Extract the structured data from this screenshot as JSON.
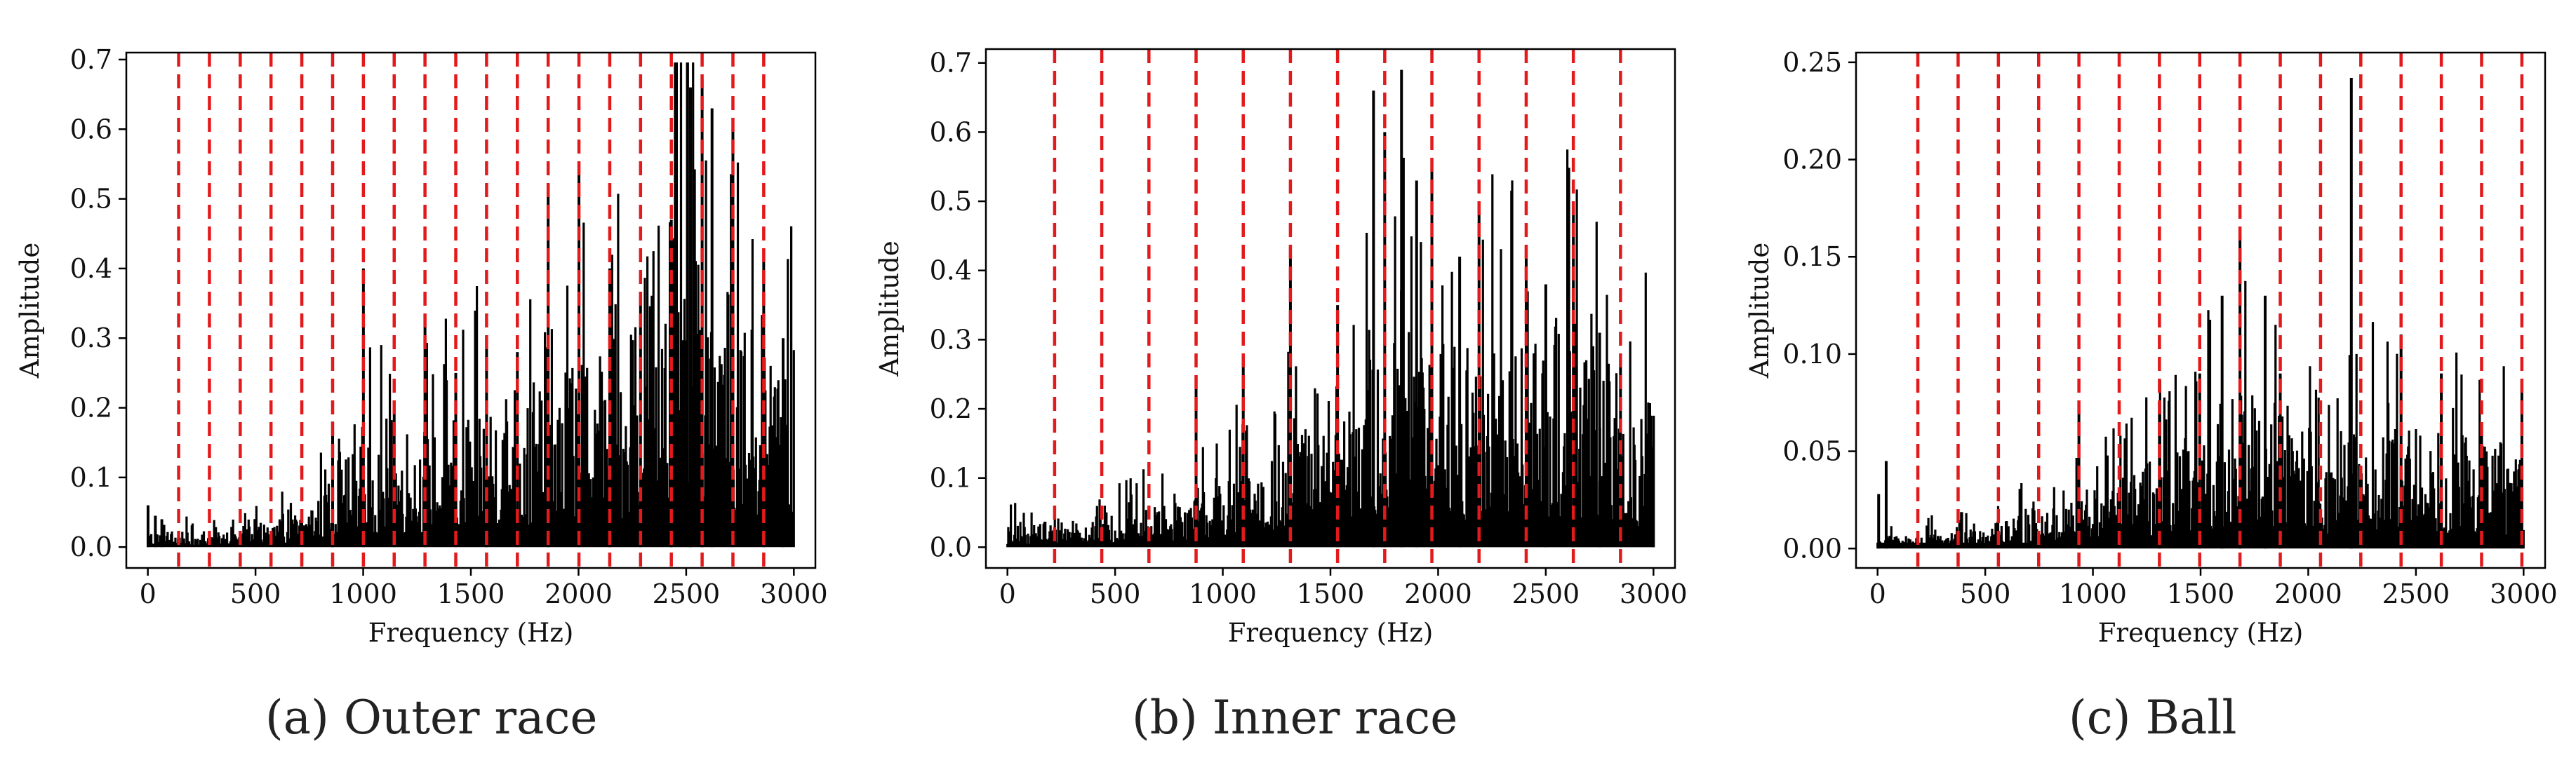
{
  "figure": {
    "captions": [
      "(a) Outer race",
      "(b) Inner race",
      "(c) Ball"
    ]
  },
  "colors": {
    "signal": "#000000",
    "harmonic_markers": "#e31a1c",
    "axes": "#000000"
  },
  "chart_data": [
    {
      "type": "line",
      "caption": "(a) Outer race",
      "xlabel": "Frequency (Hz)",
      "ylabel": "Amplitude",
      "xlim": [
        -100,
        3100
      ],
      "ylim": [
        -0.03,
        0.71
      ],
      "xticks": [
        0,
        500,
        1000,
        1500,
        2000,
        2500,
        3000
      ],
      "yticks": [
        0.0,
        0.1,
        0.2,
        0.3,
        0.4,
        0.5,
        0.6,
        0.7
      ],
      "ytick_labels": [
        "0.0",
        "0.1",
        "0.2",
        "0.3",
        "0.4",
        "0.5",
        "0.6",
        "0.7"
      ],
      "harmonic_lines": [
        143,
        286,
        429,
        572,
        715,
        858,
        1001,
        1144,
        1287,
        1430,
        1573,
        1716,
        1859,
        2002,
        2145,
        2288,
        2431,
        2574,
        2717,
        2860
      ],
      "envelope": [
        [
          0,
          0.02
        ],
        [
          300,
          0.02
        ],
        [
          700,
          0.04
        ],
        [
          900,
          0.1
        ],
        [
          1000,
          0.13
        ],
        [
          1300,
          0.14
        ],
        [
          1600,
          0.18
        ],
        [
          1900,
          0.21
        ],
        [
          2200,
          0.26
        ],
        [
          2400,
          0.42
        ],
        [
          2550,
          0.46
        ],
        [
          2700,
          0.32
        ],
        [
          2900,
          0.27
        ],
        [
          3000,
          0.25
        ]
      ],
      "peaks": [
        [
          1,
          0.06
        ],
        [
          35,
          0.045
        ],
        [
          65,
          0.04
        ],
        [
          858,
          0.18
        ],
        [
          1001,
          0.4
        ],
        [
          1144,
          0.2
        ],
        [
          1287,
          0.33
        ],
        [
          1430,
          0.25
        ],
        [
          1573,
          0.3
        ],
        [
          1716,
          0.28
        ],
        [
          1859,
          0.52
        ],
        [
          2002,
          0.55
        ],
        [
          2145,
          0.4
        ],
        [
          2288,
          0.36
        ],
        [
          2431,
          0.47
        ],
        [
          2520,
          0.66
        ],
        [
          2574,
          0.67
        ],
        [
          2620,
          0.63
        ],
        [
          2717,
          0.6
        ],
        [
          2860,
          0.41
        ],
        [
          2950,
          0.3
        ]
      ]
    },
    {
      "type": "line",
      "caption": "(b) Inner race",
      "xlabel": "Frequency (Hz)",
      "ylabel": "Amplitude",
      "xlim": [
        -100,
        3100
      ],
      "ylim": [
        -0.03,
        0.72
      ],
      "xticks": [
        0,
        500,
        1000,
        1500,
        2000,
        2500,
        3000
      ],
      "yticks": [
        0.0,
        0.1,
        0.2,
        0.3,
        0.4,
        0.5,
        0.6,
        0.7
      ],
      "ytick_labels": [
        "0.0",
        "0.1",
        "0.2",
        "0.3",
        "0.4",
        "0.5",
        "0.6",
        "0.7"
      ],
      "harmonic_lines": [
        219,
        438,
        657,
        876,
        1095,
        1314,
        1533,
        1752,
        1971,
        2190,
        2409,
        2628,
        2847
      ],
      "envelope": [
        [
          0,
          0.03
        ],
        [
          400,
          0.04
        ],
        [
          800,
          0.06
        ],
        [
          1000,
          0.09
        ],
        [
          1300,
          0.13
        ],
        [
          1600,
          0.18
        ],
        [
          1700,
          0.24
        ],
        [
          1900,
          0.28
        ],
        [
          2100,
          0.24
        ],
        [
          2400,
          0.26
        ],
        [
          2600,
          0.3
        ],
        [
          2800,
          0.22
        ],
        [
          3000,
          0.18
        ]
      ],
      "peaks": [
        [
          876,
          0.24
        ],
        [
          1095,
          0.28
        ],
        [
          1314,
          0.43
        ],
        [
          1533,
          0.35
        ],
        [
          1700,
          0.66
        ],
        [
          1752,
          0.6
        ],
        [
          1830,
          0.69
        ],
        [
          1900,
          0.53
        ],
        [
          1971,
          0.56
        ],
        [
          2100,
          0.42
        ],
        [
          2190,
          0.5
        ],
        [
          2409,
          0.43
        ],
        [
          2500,
          0.38
        ],
        [
          2628,
          0.49
        ],
        [
          2750,
          0.31
        ],
        [
          2847,
          0.27
        ],
        [
          3000,
          0.19
        ]
      ]
    },
    {
      "type": "line",
      "caption": "(c) Ball",
      "xlabel": "Frequency (Hz)",
      "ylabel": "Amplitude",
      "xlim": [
        -100,
        3100
      ],
      "ylim": [
        -0.01,
        0.255
      ],
      "xticks": [
        0,
        500,
        1000,
        1500,
        2000,
        2500,
        3000
      ],
      "yticks": [
        0.0,
        0.05,
        0.1,
        0.15,
        0.2,
        0.25
      ],
      "ytick_labels": [
        "0.00",
        "0.05",
        "0.10",
        "0.15",
        "0.20",
        "0.25"
      ],
      "harmonic_lines": [
        187,
        374,
        561,
        748,
        935,
        1122,
        1309,
        1496,
        1683,
        1870,
        2057,
        2244,
        2431,
        2618,
        2805,
        2992
      ],
      "envelope": [
        [
          0,
          0.005
        ],
        [
          400,
          0.01
        ],
        [
          800,
          0.02
        ],
        [
          1100,
          0.03
        ],
        [
          1400,
          0.045
        ],
        [
          1700,
          0.075
        ],
        [
          1900,
          0.065
        ],
        [
          2100,
          0.05
        ],
        [
          2400,
          0.055
        ],
        [
          2700,
          0.05
        ],
        [
          3000,
          0.045
        ]
      ],
      "peaks": [
        [
          5,
          0.028
        ],
        [
          40,
          0.045
        ],
        [
          935,
          0.07
        ],
        [
          1309,
          0.07
        ],
        [
          1496,
          0.09
        ],
        [
          1600,
          0.13
        ],
        [
          1683,
          0.16
        ],
        [
          1800,
          0.13
        ],
        [
          1870,
          0.09
        ],
        [
          2200,
          0.242
        ],
        [
          2431,
          0.11
        ],
        [
          2618,
          0.09
        ],
        [
          2805,
          0.06
        ],
        [
          2992,
          0.086
        ]
      ]
    }
  ]
}
